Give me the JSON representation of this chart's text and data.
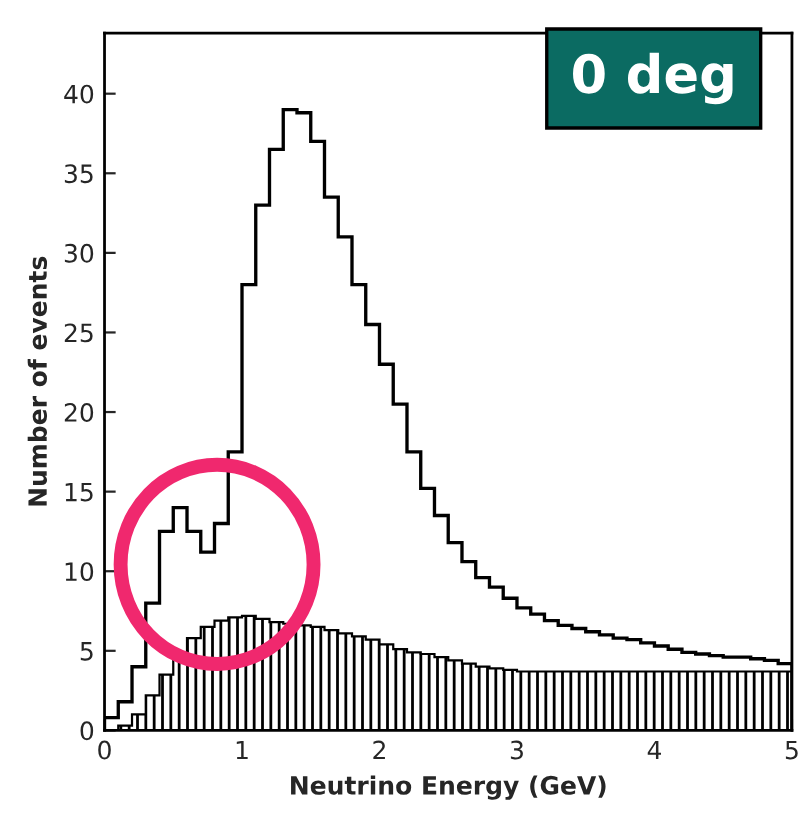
{
  "chart_data": {
    "type": "histogram",
    "title": "0 deg",
    "xlabel": "Neutrino Energy (GeV)",
    "ylabel": "Number of events",
    "bins": [
      0,
      0.1,
      0.2,
      0.3,
      0.4,
      0.5,
      0.6,
      0.7,
      0.8,
      0.9,
      1.0,
      1.1,
      1.2,
      1.3,
      1.4,
      1.5,
      1.6,
      1.7,
      1.8,
      1.9,
      2.0,
      2.1,
      2.2,
      2.3,
      2.4,
      2.5,
      2.6,
      2.7,
      2.8,
      2.9,
      3.0,
      3.1,
      3.2,
      3.3,
      3.4,
      3.5,
      3.6,
      3.7,
      3.8,
      3.9,
      4.0,
      4.1,
      4.2,
      4.3,
      4.4,
      4.5,
      4.6,
      4.7,
      4.8,
      4.9,
      5.0
    ],
    "series": [
      {
        "color": "#000000",
        "values": [
          0.8,
          1.8,
          4,
          8,
          12.5,
          14,
          12.5,
          11.2,
          13,
          17.5,
          28,
          33,
          36.5,
          39,
          38.8,
          37,
          33.5,
          31,
          28,
          25.5,
          23,
          20.5,
          17.5,
          15.2,
          13.5,
          11.8,
          10.6,
          9.6,
          9.0,
          8.3,
          7.7,
          7.3,
          6.9,
          6.6,
          6.4,
          6.2,
          6.0,
          5.8,
          5.7,
          5.5,
          5.3,
          5.1,
          4.9,
          4.8,
          4.7,
          4.6,
          4.6,
          4.5,
          4.4,
          4.2
        ]
      },
      {
        "color": "#000000",
        "values": [
          0,
          0.3,
          1.0,
          2.2,
          3.5,
          4.8,
          5.8,
          6.5,
          6.9,
          7.1,
          7.2,
          7.0,
          6.8,
          6.7,
          6.6,
          6.5,
          6.3,
          6.1,
          5.9,
          5.7,
          5.4,
          5.1,
          4.9,
          4.8,
          4.6,
          4.4,
          4.2,
          4.0,
          3.9,
          3.8,
          3.7,
          3.7,
          3.7,
          3.7,
          3.7,
          3.7,
          3.7,
          3.7,
          3.7,
          3.7,
          3.7,
          3.7,
          3.7,
          3.7,
          3.7,
          3.7,
          3.7,
          3.7,
          3.7,
          3.7
        ]
      }
    ],
    "xlim": [
      0,
      5
    ],
    "xticks": [
      0,
      1,
      2,
      3,
      4,
      5
    ],
    "ylim": [
      0,
      43.8
    ],
    "yticks": [
      0,
      5,
      10,
      15,
      20,
      25,
      30,
      35,
      40
    ],
    "grid": false,
    "legend": false
  }
}
